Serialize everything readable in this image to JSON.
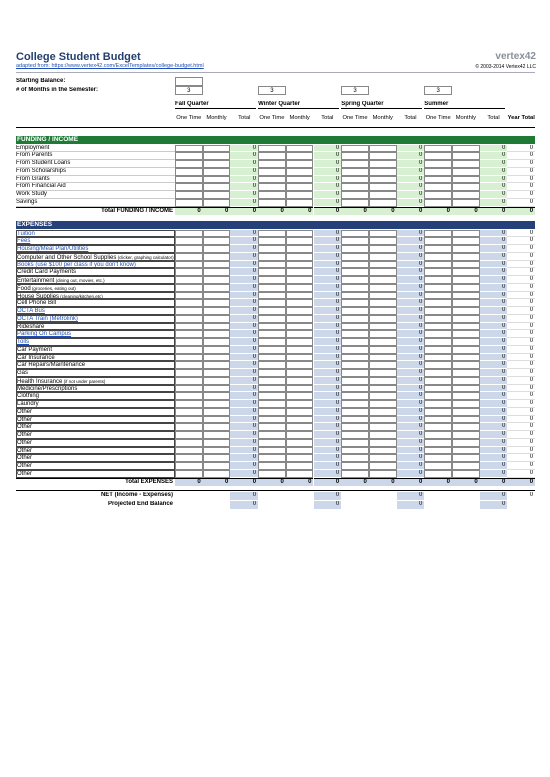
{
  "header": {
    "title": "College Student Budget",
    "source": "adapted from: https://www.vertex42.com/ExcelTemplates/college-budget.html",
    "logo": "vertex42",
    "copyright": "© 2003-2014 Vertex42 LLC"
  },
  "setup": {
    "starting_balance_label": "Starting Balance:",
    "months_label": "# of Months in the Semester:",
    "months": [
      3,
      3,
      3,
      3
    ]
  },
  "quarters": [
    "Fall Quarter",
    "Winter Quarter",
    "Spring Quarter",
    "Summer"
  ],
  "columns": [
    "One Time",
    "Monthly",
    "Total"
  ],
  "year_total": "Year Total",
  "funding": {
    "title": "FUNDING / INCOME",
    "rows": [
      {
        "label": "Employment",
        "totals": [
          0,
          0,
          0,
          0,
          0
        ]
      },
      {
        "label": "From Parents",
        "totals": [
          0,
          0,
          0,
          0,
          0
        ]
      },
      {
        "label": "From Student Loans",
        "totals": [
          0,
          0,
          0,
          0,
          0
        ]
      },
      {
        "label": "From Scholarships",
        "totals": [
          0,
          0,
          0,
          0,
          0
        ]
      },
      {
        "label": "From Grants",
        "totals": [
          0,
          0,
          0,
          0,
          0
        ]
      },
      {
        "label": "From Financial Aid",
        "totals": [
          0,
          0,
          0,
          0,
          0
        ]
      },
      {
        "label": "Work Study",
        "totals": [
          0,
          0,
          0,
          0,
          0
        ]
      },
      {
        "label": "Savings",
        "totals": [
          0,
          0,
          0,
          0,
          0
        ]
      }
    ],
    "total_label": "Total FUNDING / INCOME",
    "total_values": [
      0,
      0,
      0,
      0,
      0,
      0,
      0,
      0,
      0,
      0,
      0,
      0,
      0
    ]
  },
  "expenses": {
    "title": "EXPENSES",
    "rows": [
      {
        "label": "Tuition",
        "link": true,
        "totals": [
          0,
          0,
          0,
          0,
          0
        ]
      },
      {
        "label": "Fees",
        "link": true,
        "totals": [
          0,
          0,
          0,
          0,
          0
        ]
      },
      {
        "label": "Housing/Meal Plan/Utilities",
        "link": true,
        "totals": [
          0,
          0,
          0,
          0,
          0
        ]
      },
      {
        "label": "Computer and Other School Supplies",
        "note": "(clicker, graphing calculator)",
        "totals": [
          0,
          0,
          0,
          0,
          0
        ]
      },
      {
        "label": "Books (use $100 per class if you don't know)",
        "link": true,
        "totals": [
          0,
          0,
          0,
          0,
          0
        ]
      },
      {
        "label": "Credit Card Payments",
        "totals": [
          0,
          0,
          0,
          0,
          0
        ]
      },
      {
        "label": "Entertainment",
        "note": "(dining out, movies, etc.)",
        "totals": [
          0,
          0,
          0,
          0,
          0
        ]
      },
      {
        "label": "Food",
        "note": "(groceries, eating out)",
        "totals": [
          0,
          0,
          0,
          0,
          0
        ]
      },
      {
        "label": "House Supplies",
        "note": "(cleaning/kitchen,etc)",
        "totals": [
          0,
          0,
          0,
          0,
          0
        ]
      },
      {
        "label": "Cell Phone Bill",
        "totals": [
          0,
          0,
          0,
          0,
          0
        ]
      },
      {
        "label": "OCTA Bus",
        "link": true,
        "totals": [
          0,
          0,
          0,
          0,
          0
        ]
      },
      {
        "label": "OCTA Train (Metrolink)",
        "link": true,
        "totals": [
          0,
          0,
          0,
          0,
          0
        ]
      },
      {
        "label": "Rideshare",
        "totals": [
          0,
          0,
          0,
          0,
          0
        ]
      },
      {
        "label": "Parking On Campus",
        "link": true,
        "totals": [
          0,
          0,
          0,
          0,
          0
        ]
      },
      {
        "label": "Tolls",
        "link": true,
        "totals": [
          0,
          0,
          0,
          0,
          0
        ]
      },
      {
        "label": "Car Payment",
        "totals": [
          0,
          0,
          0,
          0,
          0
        ]
      },
      {
        "label": "Car Insurance",
        "totals": [
          0,
          0,
          0,
          0,
          0
        ]
      },
      {
        "label": "Car Repairs/Maintenance",
        "totals": [
          0,
          0,
          0,
          0,
          0
        ]
      },
      {
        "label": "Gas",
        "totals": [
          0,
          0,
          0,
          0,
          0
        ]
      },
      {
        "label": "Health Insurance",
        "note": "(if not under parents)",
        "totals": [
          0,
          0,
          0,
          0,
          0
        ]
      },
      {
        "label": "Medicine/Prescriptions",
        "totals": [
          0,
          0,
          0,
          0,
          0
        ]
      },
      {
        "label": "Clothing",
        "totals": [
          0,
          0,
          0,
          0,
          0
        ]
      },
      {
        "label": "Laundry",
        "totals": [
          0,
          0,
          0,
          0,
          0
        ]
      },
      {
        "label": "Other",
        "totals": [
          0,
          0,
          0,
          0,
          0
        ]
      },
      {
        "label": "Other",
        "totals": [
          0,
          0,
          0,
          0,
          0
        ]
      },
      {
        "label": "Other",
        "totals": [
          0,
          0,
          0,
          0,
          0
        ]
      },
      {
        "label": "Other",
        "totals": [
          0,
          0,
          0,
          0,
          0
        ]
      },
      {
        "label": "Other",
        "totals": [
          0,
          0,
          0,
          0,
          0
        ]
      },
      {
        "label": "Other",
        "totals": [
          0,
          0,
          0,
          0,
          0
        ]
      },
      {
        "label": "Other",
        "totals": [
          0,
          0,
          0,
          0,
          0
        ]
      },
      {
        "label": "Other",
        "totals": [
          0,
          0,
          0,
          0,
          0
        ]
      },
      {
        "label": "Other",
        "totals": [
          0,
          0,
          0,
          0,
          0
        ]
      }
    ],
    "total_label": "Total EXPENSES",
    "total_values": [
      0,
      0,
      0,
      0,
      0,
      0,
      0,
      0,
      0,
      0,
      0,
      0,
      0
    ]
  },
  "net": {
    "label": "NET (Income - Expenses)",
    "values": [
      0,
      0,
      0,
      0,
      0
    ]
  },
  "projected": {
    "label": "Projected End Balance",
    "values": [
      0,
      0,
      0,
      0
    ]
  }
}
